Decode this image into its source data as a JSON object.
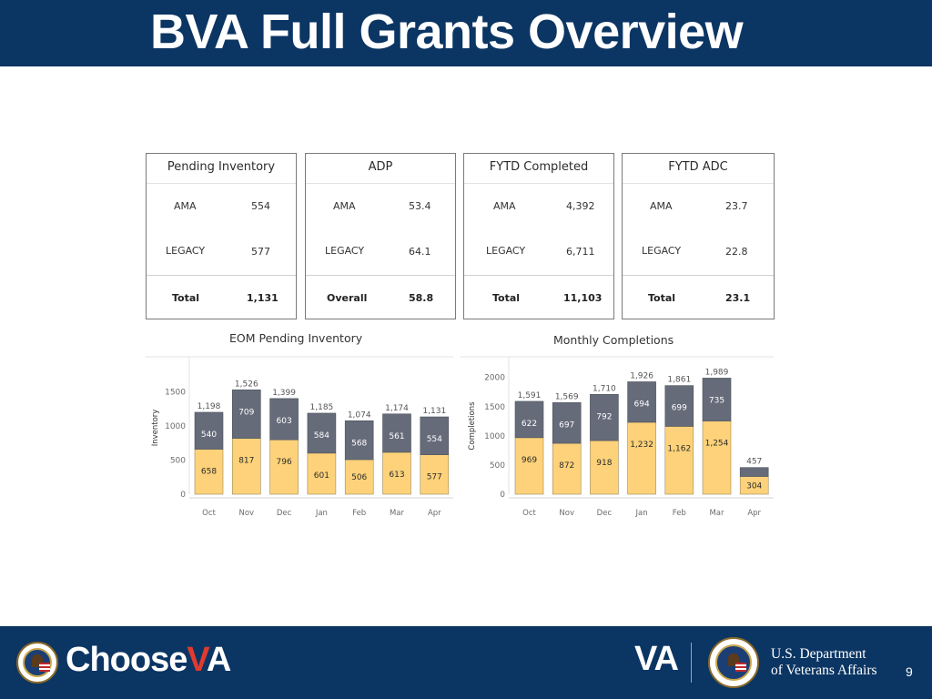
{
  "slide": {
    "title": "BVA Full Grants Overview",
    "page_number": "9"
  },
  "footer": {
    "choose_prefix": "Choose",
    "choose_accent": "V",
    "choose_suffix": "A",
    "va_mark": "VA",
    "dept_line1": "U.S. Department",
    "dept_line2": "of Veterans Affairs"
  },
  "kpis": [
    {
      "title": "Pending Inventory",
      "rows": [
        {
          "label": "AMA",
          "value": "554"
        },
        {
          "label": "LEGACY",
          "value": "577"
        }
      ],
      "total_label": "Total",
      "total_value": "1,131"
    },
    {
      "title": "ADP",
      "rows": [
        {
          "label": "AMA",
          "value": "53.4"
        },
        {
          "label": "LEGACY",
          "value": "64.1"
        }
      ],
      "total_label": "Overall",
      "total_value": "58.8"
    },
    {
      "title": "FYTD Completed",
      "rows": [
        {
          "label": "AMA",
          "value": "4,392"
        },
        {
          "label": "LEGACY",
          "value": "6,711"
        }
      ],
      "total_label": "Total",
      "total_value": "11,103"
    },
    {
      "title": "FYTD ADC",
      "rows": [
        {
          "label": "AMA",
          "value": "23.7"
        },
        {
          "label": "LEGACY",
          "value": "22.8"
        }
      ],
      "total_label": "Total",
      "total_value": "23.1"
    }
  ],
  "colors": {
    "header_bg": "#0b3563",
    "bottom_series": "#fdd27a",
    "top_series": "#656b79"
  },
  "chart_data": [
    {
      "type": "bar",
      "stacked": true,
      "title": "EOM Pending Inventory",
      "xlabel": "",
      "ylabel": "Inventory",
      "categories": [
        "Oct",
        "Nov",
        "Dec",
        "Jan",
        "Feb",
        "Mar",
        "Apr"
      ],
      "ylim": [
        0,
        1700
      ],
      "yticks": [
        "0",
        "500",
        "1000",
        "1500"
      ],
      "series": [
        {
          "values": [
            658,
            817,
            796,
            601,
            506,
            613,
            577
          ],
          "labels": [
            "658",
            "817",
            "796",
            "601",
            "506",
            "613",
            "577"
          ]
        },
        {
          "values": [
            540,
            709,
            603,
            584,
            568,
            561,
            554
          ],
          "labels": [
            "540",
            "709",
            "603",
            "584",
            "568",
            "561",
            "554"
          ]
        }
      ],
      "totals": [
        "1,198",
        "1,526",
        "1,399",
        "1,185",
        "1,074",
        "1,174",
        "1,131"
      ],
      "grid": false
    },
    {
      "type": "bar",
      "stacked": true,
      "title": "Monthly Completions",
      "xlabel": "",
      "ylabel": "Completions",
      "categories": [
        "Oct",
        "Nov",
        "Dec",
        "Jan",
        "Feb",
        "Mar",
        "Apr"
      ],
      "ylim": [
        0,
        2150
      ],
      "yticks": [
        "0",
        "500",
        "1000",
        "1500",
        "2000"
      ],
      "series": [
        {
          "values": [
            969,
            872,
            918,
            1232,
            1162,
            1254,
            304
          ],
          "labels": [
            "969",
            "872",
            "918",
            "1,232",
            "1,162",
            "1,254",
            "304"
          ]
        },
        {
          "values": [
            622,
            697,
            792,
            694,
            699,
            735,
            153
          ],
          "labels": [
            "622",
            "697",
            "792",
            "694",
            "699",
            "735",
            ""
          ]
        }
      ],
      "totals": [
        "1,591",
        "1,569",
        "1,710",
        "1,926",
        "1,861",
        "1,989",
        "457"
      ],
      "grid": false
    }
  ]
}
